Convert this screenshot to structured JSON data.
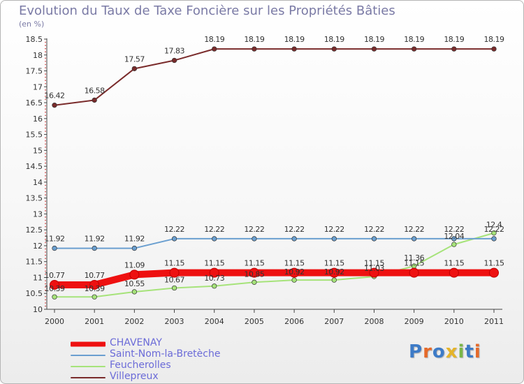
{
  "header": {
    "title": "Evolution du Taux de Taxe Foncière sur les Propriétés Bâties",
    "subtitle": "(en %)"
  },
  "logo": {
    "text": "Proxiti",
    "colors": [
      "#3d7bc7",
      "#e56a2a",
      "#3d7bc7",
      "#e5b42a",
      "#7ab648",
      "#3d7bc7",
      "#e56a2a"
    ]
  },
  "chart_data": {
    "type": "line",
    "title": "Evolution du Taux de Taxe Foncière sur les Propriétés Bâties",
    "ylabel": "(en %)",
    "xlabel": "",
    "ylim": [
      10,
      18.5
    ],
    "yticks": [
      "10",
      "10.5",
      "11",
      "11.5",
      "12",
      "12.5",
      "13",
      "13.5",
      "14",
      "14.5",
      "15",
      "15.5",
      "16",
      "16.5",
      "17",
      "17.5",
      "18",
      "18.5"
    ],
    "categories": [
      "2000",
      "2001",
      "2002",
      "2003",
      "2004",
      "2005",
      "2006",
      "2007",
      "2008",
      "2009",
      "2010",
      "2011"
    ],
    "legend_position": "bottom-left",
    "grid": false,
    "series": [
      {
        "name": "CHAVENAY",
        "color": "#ee1111",
        "style": "thick",
        "values": [
          10.77,
          10.77,
          11.09,
          11.15,
          11.15,
          11.15,
          11.15,
          11.15,
          11.15,
          11.15,
          11.15,
          11.15
        ],
        "labels": [
          "10.77",
          "10.77",
          "11.09",
          "11.15",
          "11.15",
          "11.15",
          "11.15",
          "11.15",
          "11.15",
          "11.15",
          "11.15",
          "11.15"
        ]
      },
      {
        "name": "Saint-Nom-la-Bretèche",
        "color": "#6a9fd0",
        "style": "thin",
        "values": [
          11.92,
          11.92,
          11.92,
          12.22,
          12.22,
          12.22,
          12.22,
          12.22,
          12.22,
          12.22,
          12.22,
          12.22
        ],
        "labels": [
          "11.92",
          "11.92",
          "11.92",
          "12.22",
          "12.22",
          "12.22",
          "12.22",
          "12.22",
          "12.22",
          "12.22",
          "12.22",
          "12.22"
        ]
      },
      {
        "name": "Feucherolles",
        "color": "#a6e37a",
        "style": "thin",
        "values": [
          10.39,
          10.39,
          10.55,
          10.67,
          10.73,
          10.85,
          10.92,
          10.92,
          11.03,
          11.36,
          12.04,
          12.4
        ],
        "labels": [
          "10.39",
          "10.39",
          "10.55",
          "10.67",
          "10.73",
          "10.85",
          "10.92",
          "10.92",
          "11.03",
          "11.36",
          "12.04",
          "12.4"
        ]
      },
      {
        "name": "Villepreux",
        "color": "#7a2b2b",
        "style": "thin",
        "values": [
          16.42,
          16.58,
          17.57,
          17.83,
          18.19,
          18.19,
          18.19,
          18.19,
          18.19,
          18.19,
          18.19,
          18.19
        ],
        "labels": [
          "16.42",
          "16.58",
          "17.57",
          "17.83",
          "18.19",
          "18.19",
          "18.19",
          "18.19",
          "18.19",
          "18.19",
          "18.19",
          "18.19"
        ]
      }
    ]
  }
}
